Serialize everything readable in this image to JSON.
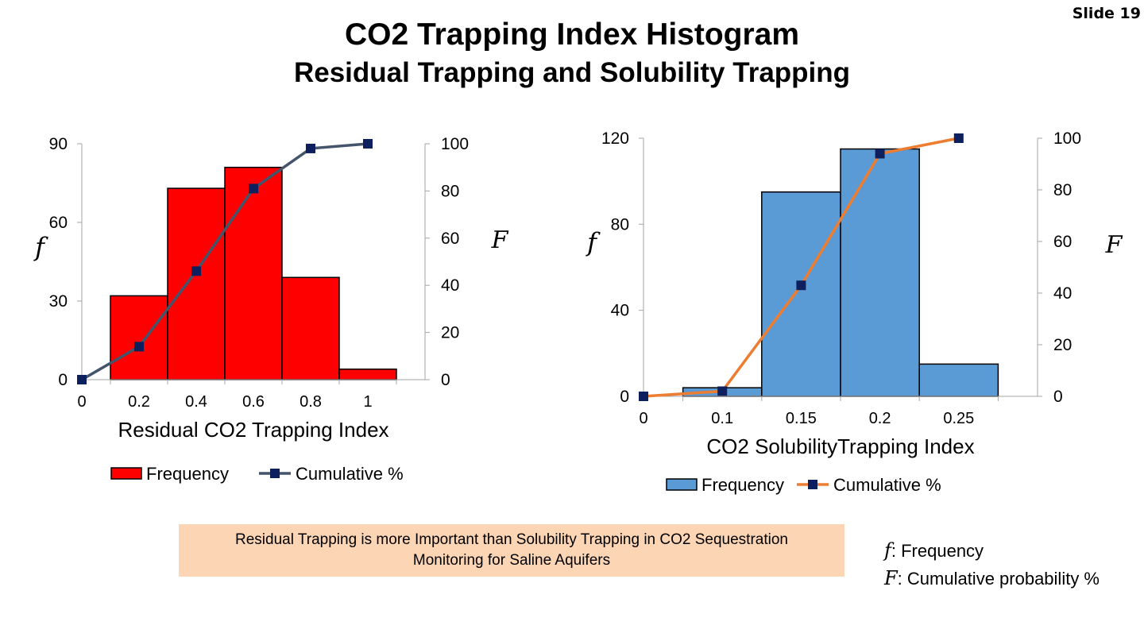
{
  "slide": {
    "number_label": "Slide 19"
  },
  "title": "CO2 Trapping Index Histogram",
  "subtitle": "Residual Trapping and Solubility Trapping",
  "chart_data": [
    {
      "type": "bar",
      "categories": [
        "0",
        "0.2",
        "0.4",
        "0.6",
        "0.8",
        "1"
      ],
      "series": [
        {
          "name": "Frequency",
          "type": "bar",
          "values": [
            0,
            32,
            73,
            81,
            39,
            4
          ],
          "color": "#ff0000"
        },
        {
          "name": "Cumulative %",
          "type": "line",
          "axis": "right",
          "values": [
            0,
            14,
            46,
            81,
            98,
            100
          ],
          "color": "#44546a",
          "marker_color": "#0d1f5c"
        }
      ],
      "xlabel": "Residual CO2 Trapping Index",
      "ylabel": "f",
      "y2label": "F",
      "ylim": [
        0,
        90
      ],
      "yticks": [
        0,
        30,
        60,
        90
      ],
      "y2lim": [
        0,
        100
      ],
      "y2ticks": [
        0,
        20,
        40,
        60,
        80,
        100
      ],
      "grid": false,
      "legend_position": "bottom"
    },
    {
      "type": "bar",
      "categories": [
        "0",
        "0.1",
        "0.15",
        "0.2",
        "0.25"
      ],
      "series": [
        {
          "name": "Frequency",
          "type": "bar",
          "values": [
            0,
            4,
            95,
            115,
            15
          ],
          "color": "#5b9bd5"
        },
        {
          "name": "Cumulative %",
          "type": "line",
          "axis": "right",
          "values": [
            0,
            2,
            43,
            94,
            100
          ],
          "color": "#ed7d31",
          "marker_color": "#0d1f5c"
        }
      ],
      "xlabel": "CO2 SolubilityTrapping Index",
      "ylabel": "f",
      "y2label": "F",
      "ylim": [
        0,
        120
      ],
      "yticks": [
        0,
        40,
        80,
        120
      ],
      "y2lim": [
        0,
        100
      ],
      "y2ticks": [
        0,
        20,
        40,
        60,
        80,
        100
      ],
      "grid": false,
      "legend_position": "bottom"
    }
  ],
  "note": {
    "line1": "Residual Trapping is more Important than Solubility Trapping in CO2 Sequestration",
    "line2": "Monitoring for Saline Aquifers"
  },
  "definitions": [
    {
      "symbol": "f",
      "text": ": Frequency"
    },
    {
      "symbol": "F",
      "text": ": Cumulative probability %"
    }
  ]
}
